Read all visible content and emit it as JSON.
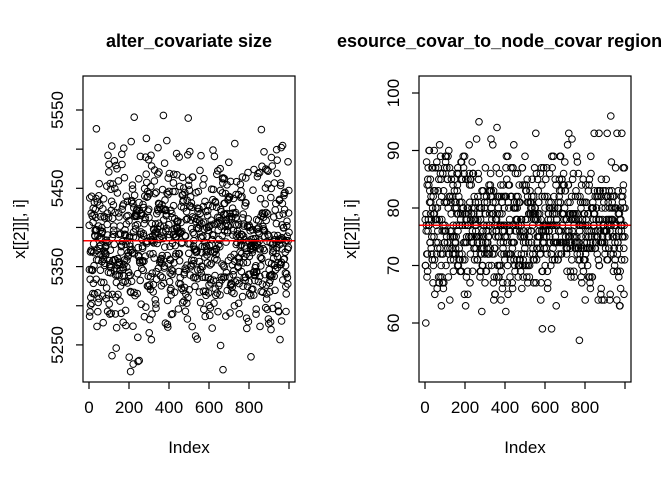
{
  "figure": {
    "background": "#ffffff",
    "point_color": "#000000",
    "mean_line_color": "#ff0000",
    "axis_color": "#000000"
  },
  "chart_data": [
    {
      "type": "scatter",
      "title": "alter_covariate size",
      "xlabel": "Index",
      "ylabel": "x[[2]][, i]",
      "n_points": 1000,
      "x_ticks": [
        0,
        200,
        400,
        600,
        800,
        1000
      ],
      "x_tick_labels": [
        "0",
        "200",
        "400",
        "600",
        "800",
        ""
      ],
      "y_ticks": [
        5250,
        5300,
        5350,
        5400,
        5450,
        5500,
        5550
      ],
      "y_tick_labels": [
        "5250",
        "",
        "5350",
        "",
        "5450",
        "",
        "5550"
      ],
      "xlim": [
        -30,
        1030
      ],
      "ylim": [
        5203,
        5594
      ],
      "points_distribution": {
        "kind": "normal",
        "mean": 5383,
        "sd": 55,
        "min": 5212,
        "max": 5585,
        "integer": false,
        "seed": 1234567
      },
      "mean_line_y": 5383,
      "marker": "open-circle",
      "legend": null,
      "grid": false
    },
    {
      "type": "scatter",
      "title": "esource_covar_to_node_covar region",
      "xlabel": "Index",
      "ylabel": "x[[2]][, i]",
      "n_points": 1000,
      "x_ticks": [
        0,
        200,
        400,
        600,
        800,
        1000
      ],
      "x_tick_labels": [
        "0",
        "200",
        "400",
        "600",
        "800",
        ""
      ],
      "y_ticks": [
        60,
        70,
        80,
        90,
        100
      ],
      "y_tick_labels": [
        "60",
        "70",
        "80",
        "90",
        "100"
      ],
      "xlim": [
        -30,
        1030
      ],
      "ylim": [
        49.7,
        103.1
      ],
      "points_distribution": {
        "kind": "normal",
        "mean": 77,
        "sd": 6.3,
        "min": 52,
        "max": 100,
        "integer": true,
        "seed": 424242
      },
      "mean_line_y": 77,
      "marker": "open-circle",
      "legend": null,
      "grid": false
    }
  ]
}
